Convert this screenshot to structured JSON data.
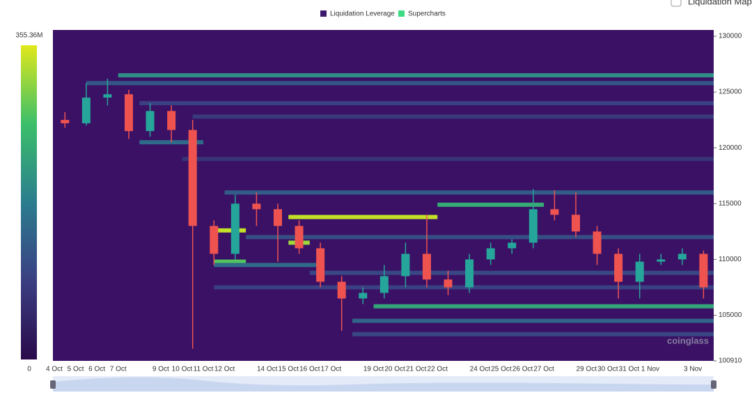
{
  "chart_data": {
    "type": "heatmap-candlestick",
    "legend": [
      {
        "name": "Liquidation Leverage",
        "color": "#3d1a6e"
      },
      {
        "name": "Supercharts",
        "color": "#3ddc84"
      }
    ],
    "toggle_label": "Liquidation Map",
    "watermark": "coinglass",
    "categories": [
      "4 Oct",
      "5 Oct",
      "6 Oct",
      "7 Oct",
      null,
      "9 Oct",
      "10 Oct",
      "11 Oct",
      "12 Oct",
      null,
      "14 Oct",
      "15 Oct",
      "16 Oct",
      "17 Oct",
      null,
      "19 Oct",
      "20 Oct",
      "21 Oct",
      "22 Oct",
      null,
      "24 Oct",
      "25 Oct",
      "26 Oct",
      "27 Oct",
      null,
      "29 Oct",
      "30 Oct",
      "31 Oct",
      "1 Nov",
      null,
      "3 Nov"
    ],
    "open": [
      122500,
      122200,
      124500,
      124800,
      121500,
      123300,
      121600,
      113000,
      110500,
      115000,
      114500,
      113000,
      111000,
      108000,
      106500,
      107000,
      108500,
      110500,
      108200,
      107500,
      110000,
      111000,
      111500,
      114500,
      114000,
      112500,
      110500,
      108000,
      109800,
      110000,
      110500
    ],
    "high": [
      123200,
      125800,
      126200,
      125200,
      124000,
      123800,
      122500,
      113500,
      115800,
      116000,
      115000,
      113500,
      111500,
      108500,
      107500,
      109500,
      111500,
      114000,
      109000,
      110500,
      111500,
      111800,
      116300,
      116200,
      116000,
      113000,
      111000,
      110500,
      110500,
      111000,
      110800
    ],
    "low": [
      121800,
      122000,
      123800,
      120800,
      121000,
      120500,
      102000,
      109500,
      110000,
      113000,
      109800,
      110500,
      107500,
      103600,
      106000,
      106500,
      107500,
      107500,
      106800,
      107000,
      109500,
      110500,
      111000,
      113500,
      112000,
      109500,
      106500,
      106500,
      109500,
      109500,
      106500
    ],
    "close": [
      122200,
      124500,
      124800,
      121500,
      123300,
      121600,
      113000,
      110500,
      115000,
      114500,
      113000,
      111000,
      108000,
      106500,
      107000,
      108500,
      110500,
      108200,
      107500,
      110000,
      111000,
      111500,
      114500,
      114000,
      112500,
      110500,
      108000,
      109800,
      110000,
      110500,
      107500
    ],
    "levels": [
      {
        "price": 126500,
        "start": 3,
        "end": 31,
        "intensity": 200
      },
      {
        "price": 125800,
        "start": 1.5,
        "end": 31,
        "intensity": 120
      },
      {
        "price": 124000,
        "start": 4,
        "end": 31,
        "intensity": 90
      },
      {
        "price": 122800,
        "start": 6.5,
        "end": 31,
        "intensity": 80
      },
      {
        "price": 120500,
        "start": 4,
        "end": 7,
        "intensity": 150
      },
      {
        "price": 119000,
        "start": 6,
        "end": 31,
        "intensity": 70
      },
      {
        "price": 116000,
        "start": 8,
        "end": 31,
        "intensity": 130
      },
      {
        "price": 114900,
        "start": 18,
        "end": 23,
        "intensity": 240
      },
      {
        "price": 113800,
        "start": 11,
        "end": 18,
        "intensity": 340
      },
      {
        "price": 112600,
        "start": 7.5,
        "end": 9,
        "intensity": 340
      },
      {
        "price": 112000,
        "start": 9,
        "end": 31,
        "intensity": 110
      },
      {
        "price": 111500,
        "start": 11,
        "end": 12,
        "intensity": 320
      },
      {
        "price": 109800,
        "start": 7.5,
        "end": 9,
        "intensity": 280
      },
      {
        "price": 109500,
        "start": 7.5,
        "end": 12.5,
        "intensity": 150
      },
      {
        "price": 108800,
        "start": 12,
        "end": 31,
        "intensity": 100
      },
      {
        "price": 107500,
        "start": 7.5,
        "end": 31,
        "intensity": 90
      },
      {
        "price": 105800,
        "start": 15,
        "end": 31,
        "intensity": 230
      },
      {
        "price": 104500,
        "start": 14,
        "end": 31,
        "intensity": 140
      },
      {
        "price": 103300,
        "start": 14,
        "end": 31,
        "intensity": 100
      }
    ],
    "ylim": [
      100910,
      130562
    ],
    "yticks": [
      100910,
      105000,
      110000,
      115000,
      120000,
      125000,
      130000
    ],
    "clim": [
      0,
      355.36
    ],
    "cticks": [
      0,
      {
        "value": 355.36,
        "label": "355.36M"
      }
    ],
    "colors": {
      "base": "#3a1165",
      "up": "#26a69a",
      "down": "#ef5350"
    }
  }
}
